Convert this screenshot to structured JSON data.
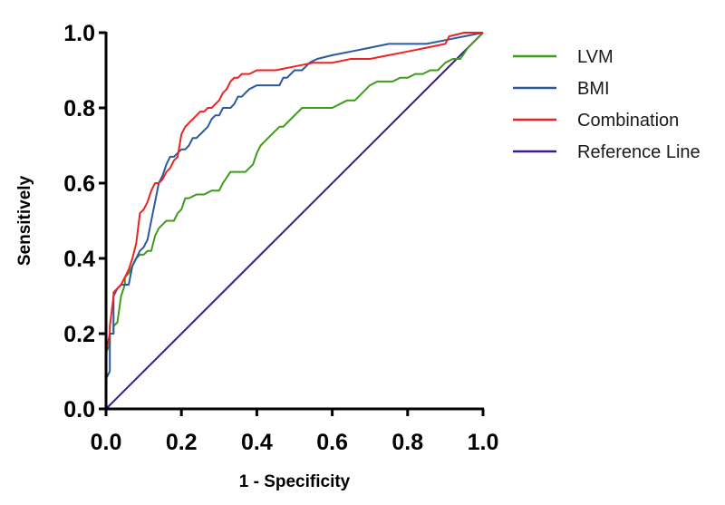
{
  "chart_data": {
    "type": "line",
    "title": "",
    "xlabel": "1 - Specificity",
    "ylabel": "Sensitively",
    "xlim": [
      0,
      1
    ],
    "ylim": [
      0,
      1
    ],
    "xticks": [
      "0.0",
      "0.2",
      "0.4",
      "0.6",
      "0.8",
      "1.0"
    ],
    "yticks": [
      "0.0",
      "0.2",
      "0.4",
      "0.6",
      "0.8",
      "1.0"
    ],
    "legend_position": "right",
    "series": [
      {
        "name": "LVM",
        "color": "#3f9b1e",
        "x": [
          0,
          0,
          0.01,
          0.01,
          0.02,
          0.02,
          0.03,
          0.04,
          0.05,
          0.05,
          0.06,
          0.07,
          0.08,
          0.09,
          0.1,
          0.11,
          0.12,
          0.13,
          0.14,
          0.15,
          0.16,
          0.17,
          0.18,
          0.19,
          0.2,
          0.21,
          0.22,
          0.24,
          0.26,
          0.28,
          0.3,
          0.31,
          0.33,
          0.35,
          0.37,
          0.39,
          0.4,
          0.41,
          0.43,
          0.45,
          0.46,
          0.47,
          0.48,
          0.5,
          0.52,
          0.54,
          0.56,
          0.58,
          0.6,
          0.62,
          0.64,
          0.66,
          0.68,
          0.7,
          0.72,
          0.74,
          0.76,
          0.78,
          0.8,
          0.82,
          0.84,
          0.86,
          0.88,
          0.9,
          0.92,
          0.94,
          0.96,
          0.98,
          1.0
        ],
        "y": [
          0,
          0.15,
          0.17,
          0.2,
          0.2,
          0.22,
          0.23,
          0.3,
          0.33,
          0.35,
          0.36,
          0.38,
          0.4,
          0.41,
          0.41,
          0.42,
          0.42,
          0.46,
          0.48,
          0.49,
          0.5,
          0.5,
          0.5,
          0.52,
          0.53,
          0.56,
          0.56,
          0.57,
          0.57,
          0.58,
          0.58,
          0.6,
          0.63,
          0.63,
          0.63,
          0.65,
          0.68,
          0.7,
          0.72,
          0.74,
          0.75,
          0.75,
          0.76,
          0.78,
          0.8,
          0.8,
          0.8,
          0.8,
          0.8,
          0.81,
          0.82,
          0.82,
          0.84,
          0.86,
          0.87,
          0.87,
          0.87,
          0.88,
          0.88,
          0.89,
          0.89,
          0.9,
          0.9,
          0.92,
          0.93,
          0.93,
          0.96,
          0.98,
          1.0
        ]
      },
      {
        "name": "BMI",
        "color": "#2a5a9e",
        "x": [
          0,
          0,
          0.01,
          0.01,
          0.02,
          0.02,
          0.03,
          0.04,
          0.05,
          0.06,
          0.07,
          0.08,
          0.09,
          0.1,
          0.11,
          0.12,
          0.13,
          0.14,
          0.15,
          0.16,
          0.17,
          0.18,
          0.19,
          0.2,
          0.21,
          0.22,
          0.23,
          0.24,
          0.25,
          0.26,
          0.27,
          0.28,
          0.29,
          0.3,
          0.31,
          0.32,
          0.33,
          0.34,
          0.35,
          0.36,
          0.37,
          0.38,
          0.4,
          0.42,
          0.44,
          0.46,
          0.47,
          0.48,
          0.5,
          0.52,
          0.54,
          0.56,
          0.6,
          0.65,
          0.7,
          0.75,
          0.8,
          0.85,
          0.9,
          0.95,
          1.0
        ],
        "y": [
          0,
          0.08,
          0.1,
          0.2,
          0.2,
          0.3,
          0.32,
          0.33,
          0.33,
          0.33,
          0.38,
          0.4,
          0.42,
          0.43,
          0.45,
          0.5,
          0.55,
          0.6,
          0.62,
          0.65,
          0.67,
          0.67,
          0.68,
          0.69,
          0.69,
          0.7,
          0.72,
          0.72,
          0.73,
          0.74,
          0.75,
          0.77,
          0.78,
          0.78,
          0.8,
          0.8,
          0.8,
          0.81,
          0.83,
          0.83,
          0.84,
          0.85,
          0.86,
          0.86,
          0.86,
          0.86,
          0.88,
          0.88,
          0.9,
          0.9,
          0.92,
          0.93,
          0.94,
          0.95,
          0.96,
          0.97,
          0.97,
          0.97,
          0.98,
          0.99,
          1.0
        ]
      },
      {
        "name": "Combination",
        "color": "#ee2222",
        "x": [
          0,
          0,
          0.01,
          0.01,
          0.02,
          0.02,
          0.03,
          0.04,
          0.05,
          0.06,
          0.07,
          0.08,
          0.09,
          0.1,
          0.11,
          0.12,
          0.13,
          0.14,
          0.15,
          0.16,
          0.17,
          0.18,
          0.19,
          0.2,
          0.21,
          0.22,
          0.23,
          0.24,
          0.25,
          0.26,
          0.27,
          0.28,
          0.29,
          0.3,
          0.31,
          0.32,
          0.33,
          0.34,
          0.35,
          0.36,
          0.37,
          0.38,
          0.4,
          0.45,
          0.5,
          0.55,
          0.6,
          0.65,
          0.7,
          0.75,
          0.8,
          0.85,
          0.9,
          0.91,
          0.95,
          1.0
        ],
        "y": [
          0,
          0.15,
          0.2,
          0.22,
          0.3,
          0.31,
          0.32,
          0.33,
          0.35,
          0.37,
          0.4,
          0.44,
          0.52,
          0.53,
          0.55,
          0.58,
          0.6,
          0.6,
          0.61,
          0.63,
          0.64,
          0.66,
          0.67,
          0.73,
          0.75,
          0.76,
          0.77,
          0.78,
          0.79,
          0.79,
          0.8,
          0.8,
          0.81,
          0.82,
          0.84,
          0.85,
          0.87,
          0.88,
          0.88,
          0.89,
          0.89,
          0.89,
          0.9,
          0.9,
          0.91,
          0.92,
          0.92,
          0.93,
          0.93,
          0.94,
          0.95,
          0.96,
          0.97,
          0.99,
          1.0,
          1.0
        ]
      },
      {
        "name": "Reference Line",
        "color": "#3a1a8c",
        "x": [
          0,
          1
        ],
        "y": [
          0,
          1
        ]
      }
    ]
  }
}
